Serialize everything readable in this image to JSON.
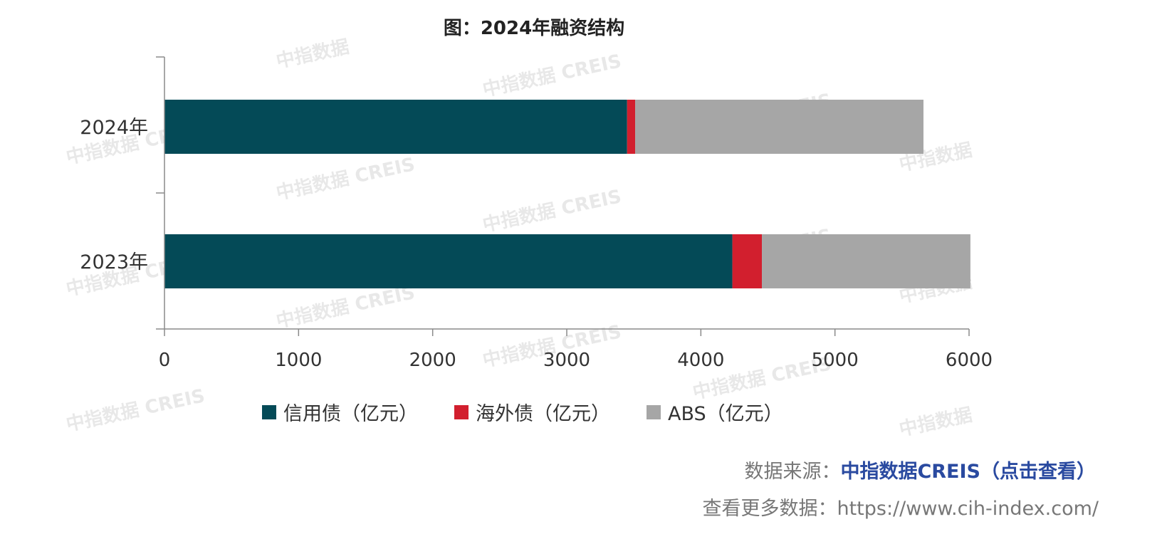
{
  "chart_data": {
    "type": "bar",
    "orientation": "horizontal",
    "stacked": true,
    "title": "图：2024年融资结构",
    "categories": [
      "2024年",
      "2023年"
    ],
    "series": [
      {
        "name": "信用债（亿元）",
        "color": "#044a57",
        "values": [
          3450,
          4235
        ]
      },
      {
        "name": "海外债（亿元）",
        "color": "#d21f2e",
        "values": [
          60,
          220
        ]
      },
      {
        "name": "ABS（亿元）",
        "color": "#a6a6a6",
        "values": [
          2150,
          1555
        ]
      }
    ],
    "xlim": [
      0,
      6000
    ],
    "xticks": [
      "0",
      "1000",
      "2000",
      "3000",
      "4000",
      "5000",
      "6000"
    ],
    "legend_position": "bottom",
    "grid": false
  },
  "watermark": {
    "text_cn": "中指数据",
    "text_full": "中指数据 CREIS"
  },
  "footer": {
    "source_label": "数据来源：",
    "source_link": "中指数据CREIS（点击查看）",
    "more_label": "查看更多数据：",
    "more_url": "https://www.cih-index.com/"
  }
}
